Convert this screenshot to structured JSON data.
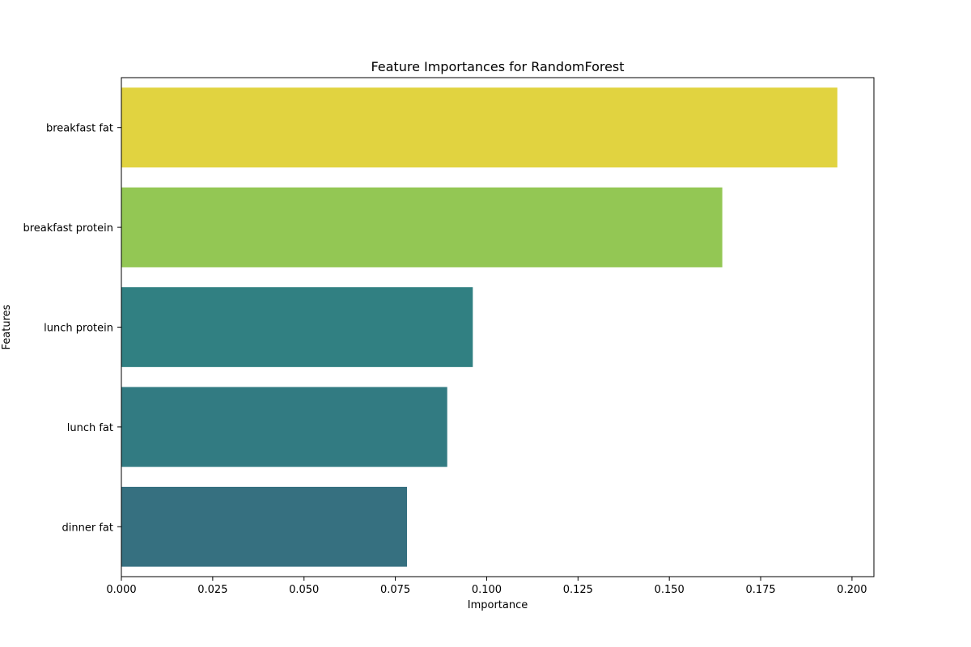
{
  "chart_data": {
    "type": "bar",
    "orientation": "horizontal",
    "title": "Feature Importances for RandomForest",
    "xlabel": "Importance",
    "ylabel": "Features",
    "categories": [
      "breakfast fat",
      "breakfast protein",
      "lunch protein",
      "lunch fat",
      "dinner fat"
    ],
    "values": [
      0.196,
      0.1645,
      0.0962,
      0.0892,
      0.0782
    ],
    "colors": [
      "#e1d340",
      "#93c754",
      "#318082",
      "#327b82",
      "#367080"
    ],
    "xlim": [
      0,
      0.206
    ],
    "xticks": [
      0.0,
      0.025,
      0.05,
      0.075,
      0.1,
      0.125,
      0.15,
      0.175,
      0.2
    ],
    "xtick_labels": [
      "0.000",
      "0.025",
      "0.050",
      "0.075",
      "0.100",
      "0.125",
      "0.150",
      "0.175",
      "0.200"
    ],
    "grid": false,
    "legend": "none"
  }
}
